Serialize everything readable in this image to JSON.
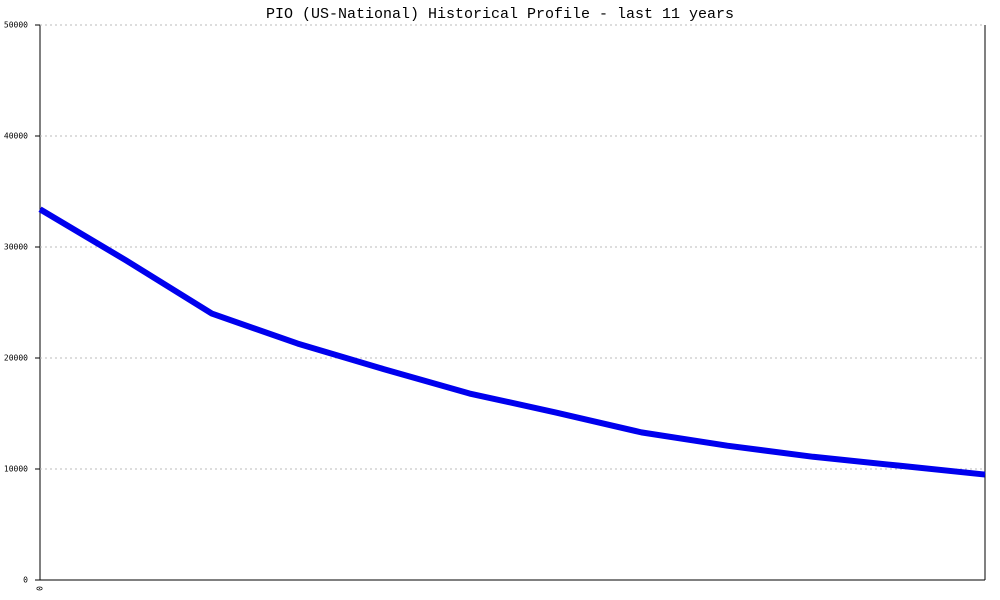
{
  "chart_data": {
    "type": "line",
    "title": "PIO (US-National) Historical Profile - last 11 years",
    "categories": [
      "0",
      null,
      null,
      null,
      null,
      null,
      null,
      null,
      null,
      null,
      null,
      null
    ],
    "series": [
      {
        "color": "#0000ee",
        "values": [
          33400,
          28800,
          24000,
          21300,
          19000,
          16800,
          15100,
          13300,
          12100,
          11100,
          10300,
          9500
        ]
      }
    ],
    "ylim": [
      0,
      50000
    ],
    "yticks": [
      0,
      10000,
      20000,
      30000,
      40000,
      50000
    ],
    "grid": true
  }
}
